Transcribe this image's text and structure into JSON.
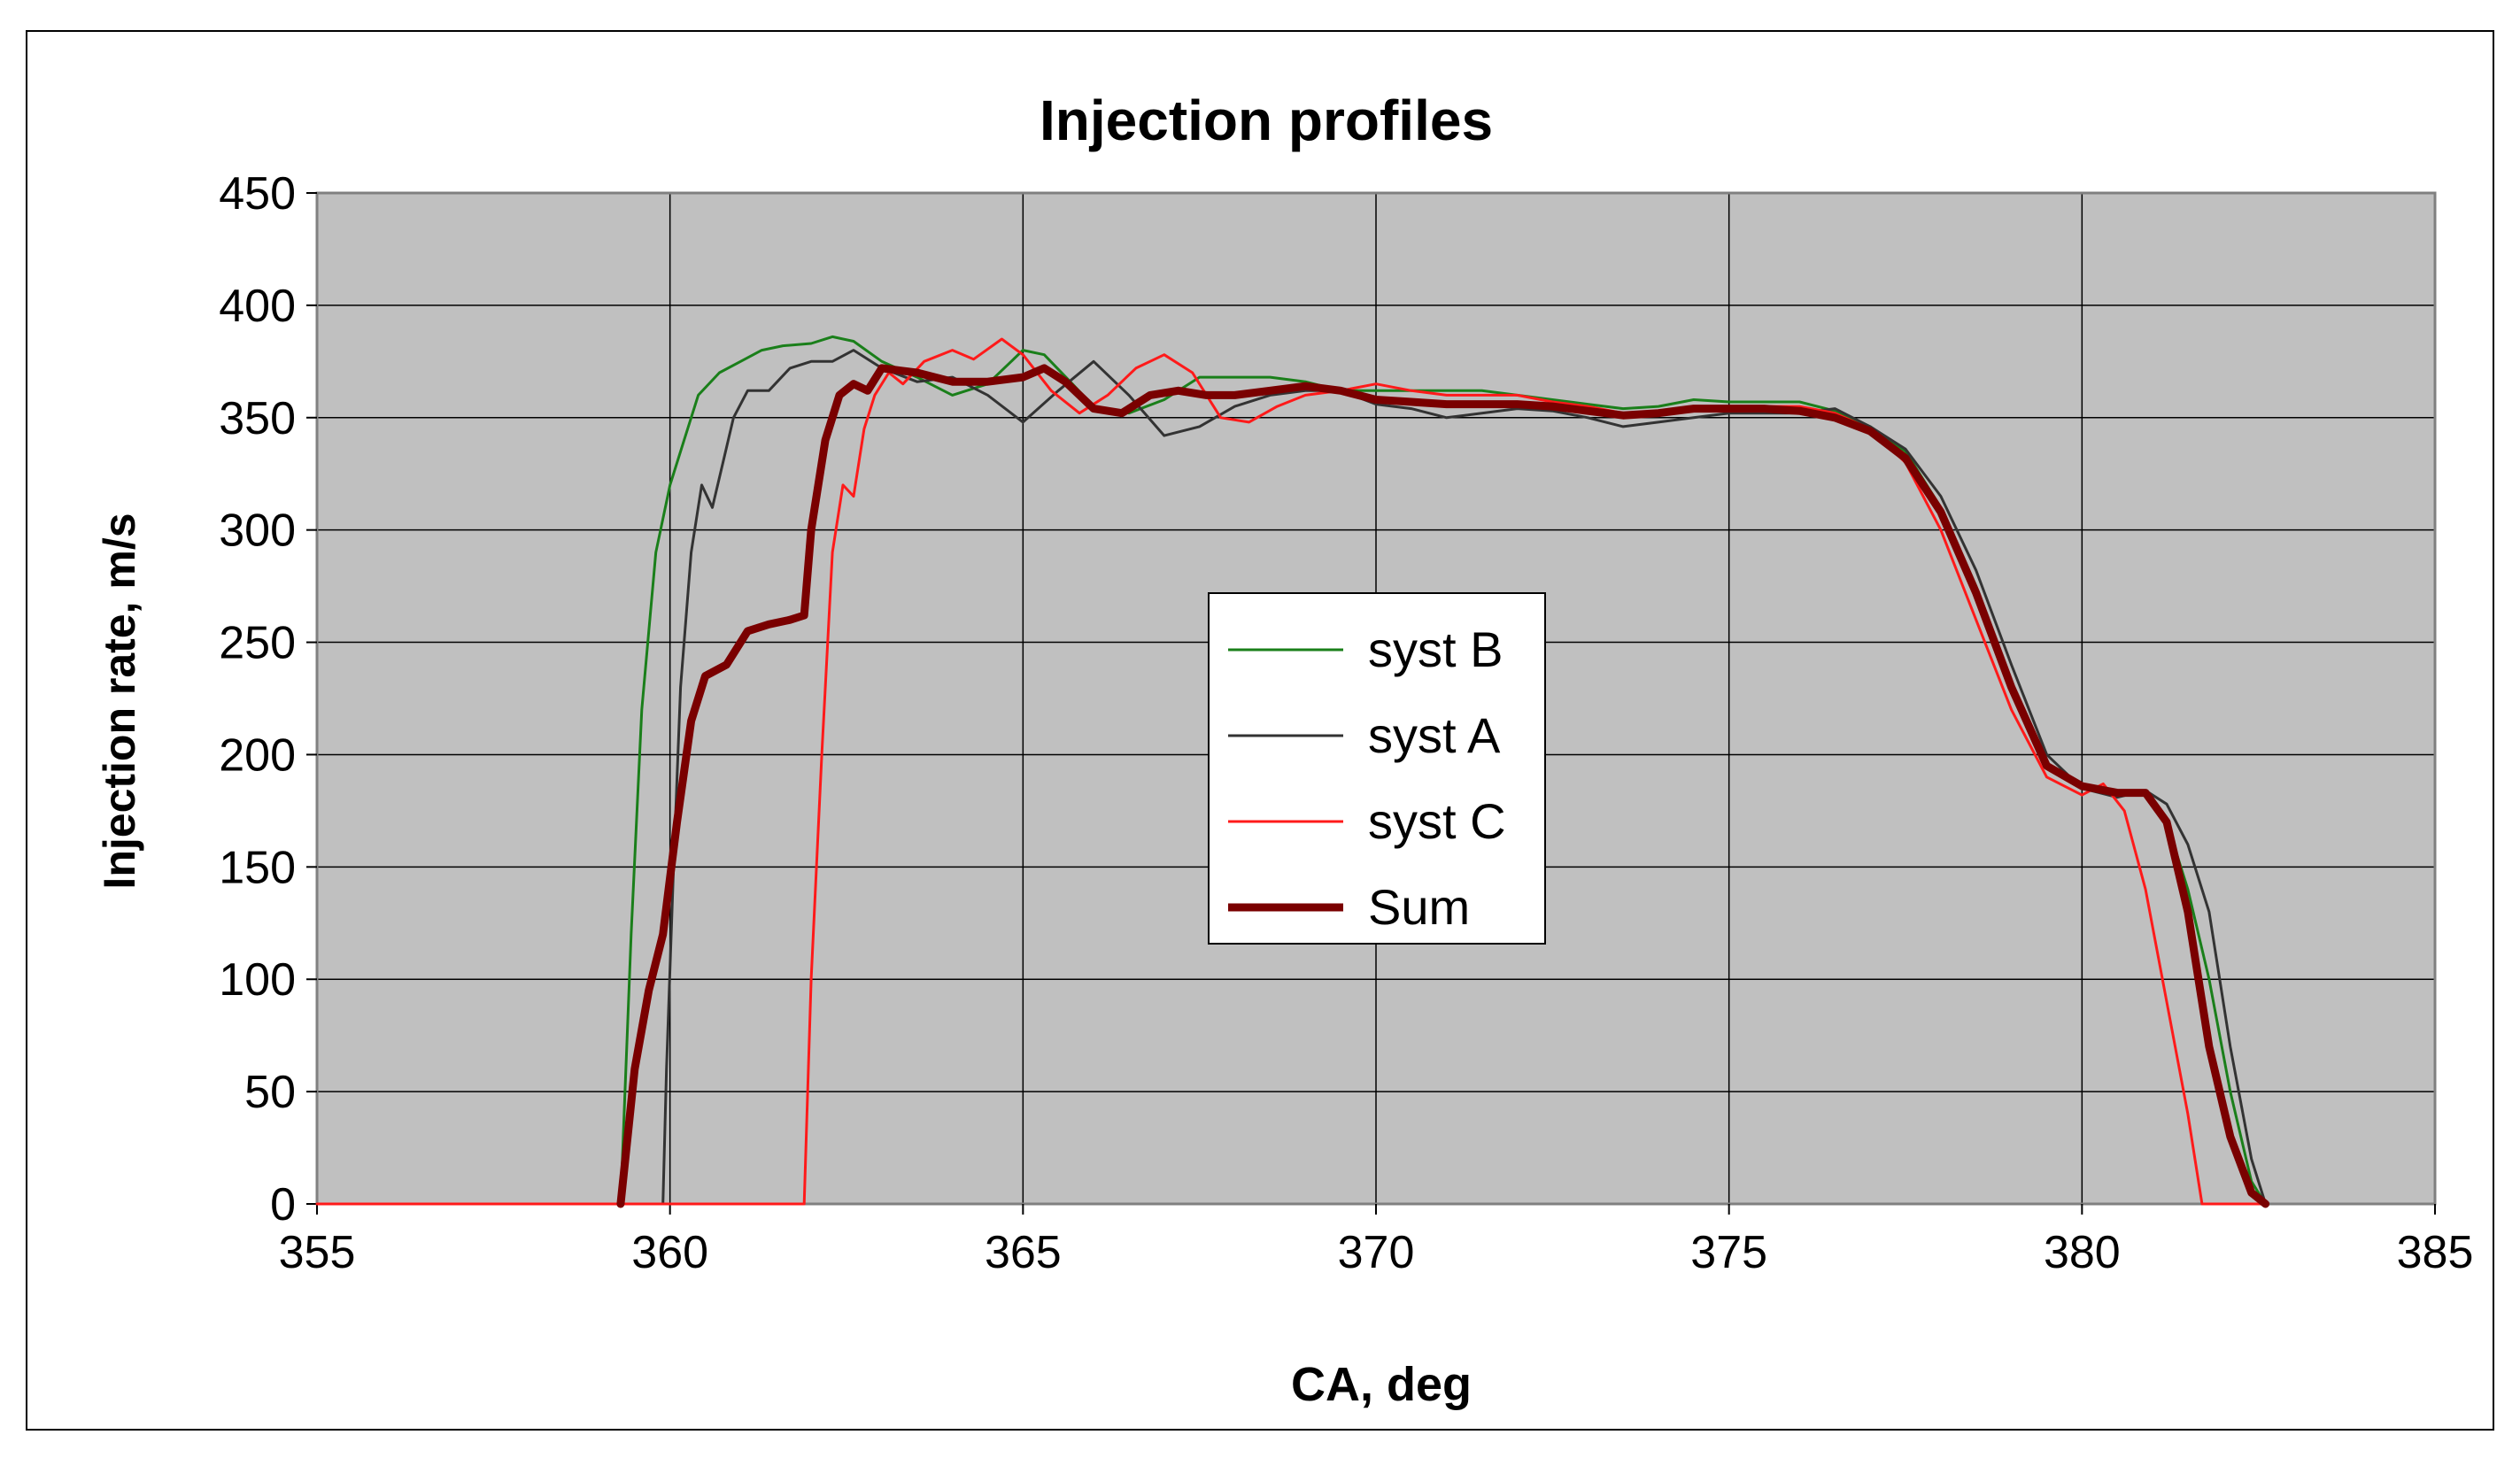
{
  "chart_data": {
    "type": "line",
    "title": "Injection profiles",
    "xlabel": "CA, deg",
    "ylabel": "Injection rate, m/s",
    "xlim": [
      355,
      385
    ],
    "ylim": [
      0,
      450
    ],
    "xticks": [
      355,
      360,
      365,
      370,
      375,
      380,
      385
    ],
    "yticks": [
      0,
      50,
      100,
      150,
      200,
      250,
      300,
      350,
      400,
      450
    ],
    "grid": true,
    "plot_background": "#c0c0c0",
    "legend_position": "center-right",
    "series": [
      {
        "name": "syst B",
        "color": "#1a7f1a",
        "width": 3,
        "x": [
          359.3,
          359.45,
          359.6,
          359.8,
          360.0,
          360.2,
          360.4,
          360.7,
          361.0,
          361.3,
          361.6,
          362.0,
          362.3,
          362.6,
          363.0,
          363.5,
          364.0,
          364.5,
          365.0,
          365.3,
          365.7,
          366.0,
          366.5,
          367.0,
          367.5,
          368.0,
          368.5,
          369.0,
          369.5,
          370.0,
          370.5,
          371.0,
          371.5,
          372.0,
          372.5,
          373.0,
          373.5,
          374.0,
          374.5,
          375.0,
          375.5,
          376.0,
          376.5,
          377.0,
          377.5,
          378.0,
          378.5,
          379.0,
          379.5,
          380.0,
          380.5,
          380.9,
          381.2,
          381.5,
          381.8,
          382.1,
          382.4,
          382.6
        ],
        "y": [
          0,
          120,
          220,
          290,
          320,
          340,
          360,
          370,
          375,
          380,
          382,
          383,
          386,
          384,
          375,
          368,
          360,
          365,
          380,
          378,
          365,
          355,
          352,
          358,
          368,
          368,
          368,
          366,
          362,
          362,
          362,
          362,
          362,
          360,
          358,
          356,
          354,
          355,
          358,
          357,
          357,
          357,
          353,
          346,
          335,
          310,
          275,
          232,
          195,
          185,
          184,
          183,
          170,
          140,
          100,
          50,
          10,
          0
        ]
      },
      {
        "name": "syst A",
        "color": "#333333",
        "width": 3,
        "x": [
          359.9,
          359.95,
          360.05,
          360.15,
          360.3,
          360.45,
          360.6,
          360.75,
          360.9,
          361.1,
          361.4,
          361.7,
          362.0,
          362.3,
          362.6,
          363.0,
          363.5,
          364.0,
          364.5,
          365.0,
          365.5,
          366.0,
          366.5,
          367.0,
          367.5,
          368.0,
          368.5,
          369.0,
          369.5,
          370.0,
          370.5,
          371.0,
          371.5,
          372.0,
          372.5,
          373.0,
          373.5,
          374.0,
          374.5,
          375.0,
          375.5,
          376.0,
          376.5,
          377.0,
          377.5,
          378.0,
          378.5,
          379.0,
          379.5,
          380.0,
          380.5,
          380.9,
          381.2,
          381.5,
          381.8,
          382.1,
          382.4,
          382.6
        ],
        "y": [
          0,
          60,
          150,
          230,
          290,
          320,
          310,
          330,
          350,
          362,
          362,
          372,
          375,
          375,
          380,
          372,
          366,
          368,
          360,
          348,
          362,
          375,
          360,
          342,
          346,
          355,
          360,
          362,
          362,
          356,
          354,
          350,
          352,
          354,
          353,
          350,
          346,
          348,
          350,
          352,
          352,
          352,
          354,
          346,
          336,
          315,
          282,
          240,
          200,
          185,
          181,
          184,
          178,
          160,
          130,
          70,
          20,
          0
        ]
      },
      {
        "name": "syst C",
        "color": "#ff1a1a",
        "width": 3,
        "x": [
          355,
          361.9,
          362.0,
          362.15,
          362.3,
          362.45,
          362.6,
          362.75,
          362.9,
          363.1,
          363.3,
          363.6,
          364.0,
          364.3,
          364.7,
          365.0,
          365.4,
          365.8,
          366.2,
          366.6,
          367.0,
          367.4,
          367.8,
          368.2,
          368.6,
          369.0,
          369.5,
          370.0,
          370.5,
          371.0,
          371.5,
          372.0,
          372.5,
          373.0,
          373.5,
          374.0,
          374.5,
          375.0,
          375.5,
          376.0,
          376.5,
          377.0,
          377.5,
          378.0,
          378.5,
          379.0,
          379.5,
          380.0,
          380.3,
          380.6,
          380.9,
          381.2,
          381.5,
          381.7,
          382.0,
          382.6
        ],
        "y": [
          0,
          0,
          100,
          200,
          290,
          320,
          315,
          345,
          360,
          370,
          365,
          375,
          380,
          376,
          385,
          378,
          362,
          352,
          360,
          372,
          378,
          370,
          350,
          348,
          355,
          360,
          362,
          365,
          362,
          360,
          360,
          360,
          357,
          355,
          352,
          352,
          354,
          355,
          355,
          355,
          352,
          345,
          330,
          300,
          260,
          220,
          190,
          182,
          187,
          175,
          140,
          90,
          40,
          0,
          0,
          0
        ]
      },
      {
        "name": "Sum",
        "color": "#7a0000",
        "width": 9,
        "x": [
          359.3,
          359.5,
          359.7,
          359.9,
          360.1,
          360.3,
          360.5,
          360.8,
          361.1,
          361.4,
          361.7,
          361.9,
          362.0,
          362.2,
          362.4,
          362.6,
          362.8,
          363.0,
          363.5,
          364.0,
          364.5,
          365.0,
          365.3,
          365.6,
          366.0,
          366.4,
          366.8,
          367.2,
          367.6,
          368.0,
          368.5,
          369.0,
          369.5,
          370.0,
          370.5,
          371.0,
          371.5,
          372.0,
          372.5,
          373.0,
          373.5,
          374.0,
          374.5,
          375.0,
          375.5,
          376.0,
          376.5,
          377.0,
          377.5,
          378.0,
          378.5,
          379.0,
          379.5,
          380.0,
          380.5,
          380.9,
          381.2,
          381.5,
          381.8,
          382.1,
          382.4,
          382.6
        ],
        "y": [
          0,
          60,
          95,
          120,
          170,
          215,
          235,
          240,
          255,
          258,
          260,
          262,
          300,
          340,
          360,
          365,
          362,
          372,
          370,
          366,
          366,
          368,
          372,
          366,
          354,
          352,
          360,
          362,
          360,
          360,
          362,
          364,
          362,
          358,
          357,
          356,
          356,
          356,
          355,
          353,
          351,
          352,
          354,
          354,
          354,
          353,
          350,
          344,
          332,
          308,
          272,
          230,
          195,
          186,
          183,
          183,
          170,
          130,
          70,
          30,
          5,
          0
        ]
      }
    ]
  }
}
